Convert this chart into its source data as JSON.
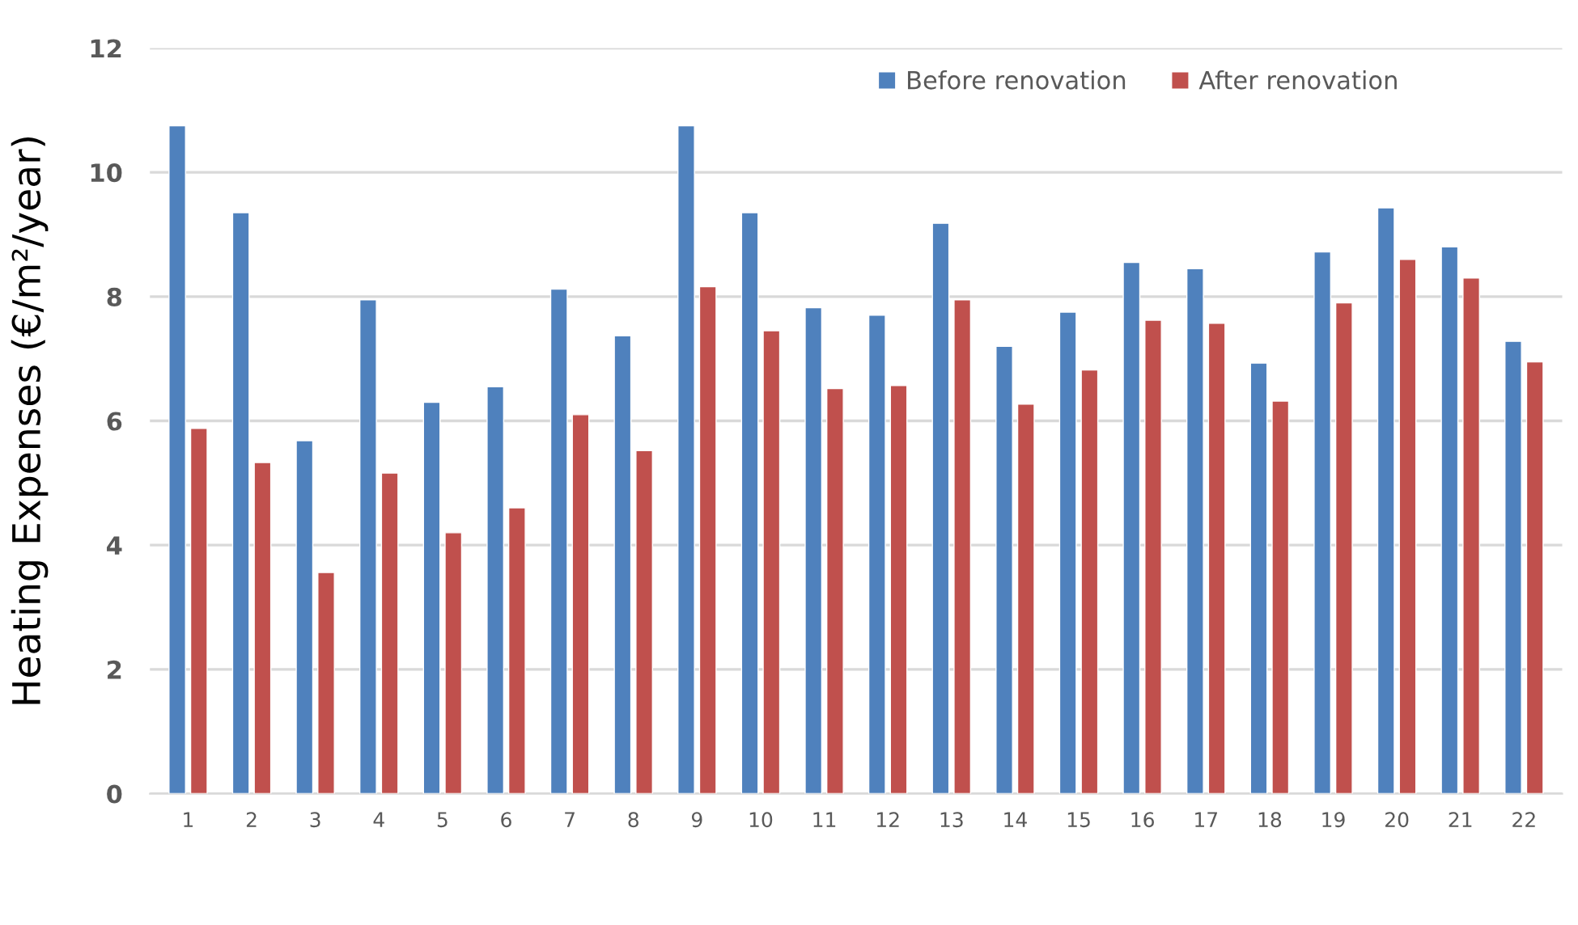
{
  "chart_data": {
    "type": "bar",
    "ylabel": "Heating Expenses (€/m²/year)",
    "categories": [
      "1",
      "2",
      "3",
      "4",
      "5",
      "6",
      "7",
      "8",
      "9",
      "10",
      "11",
      "12",
      "13",
      "14",
      "15",
      "16",
      "17",
      "18",
      "19",
      "20",
      "21",
      "22"
    ],
    "series": [
      {
        "name": "Before renovation",
        "color": "#4f81bd",
        "values": [
          10.75,
          9.35,
          5.68,
          7.95,
          6.3,
          6.55,
          8.12,
          7.37,
          10.75,
          9.35,
          7.82,
          7.7,
          9.18,
          7.2,
          7.75,
          8.55,
          8.45,
          6.93,
          8.72,
          9.43,
          8.8,
          7.28
        ]
      },
      {
        "name": "After renovation",
        "color": "#c0504d",
        "values": [
          5.88,
          5.33,
          3.56,
          5.16,
          4.2,
          4.6,
          6.1,
          5.52,
          8.16,
          7.45,
          6.52,
          6.57,
          7.95,
          6.27,
          6.82,
          7.62,
          7.57,
          6.32,
          7.9,
          8.6,
          8.3,
          6.95
        ]
      }
    ],
    "ylim": [
      0,
      12
    ],
    "yticks": [
      0,
      2,
      4,
      6,
      8,
      10,
      12
    ],
    "grid": "y",
    "legend": "top right"
  }
}
